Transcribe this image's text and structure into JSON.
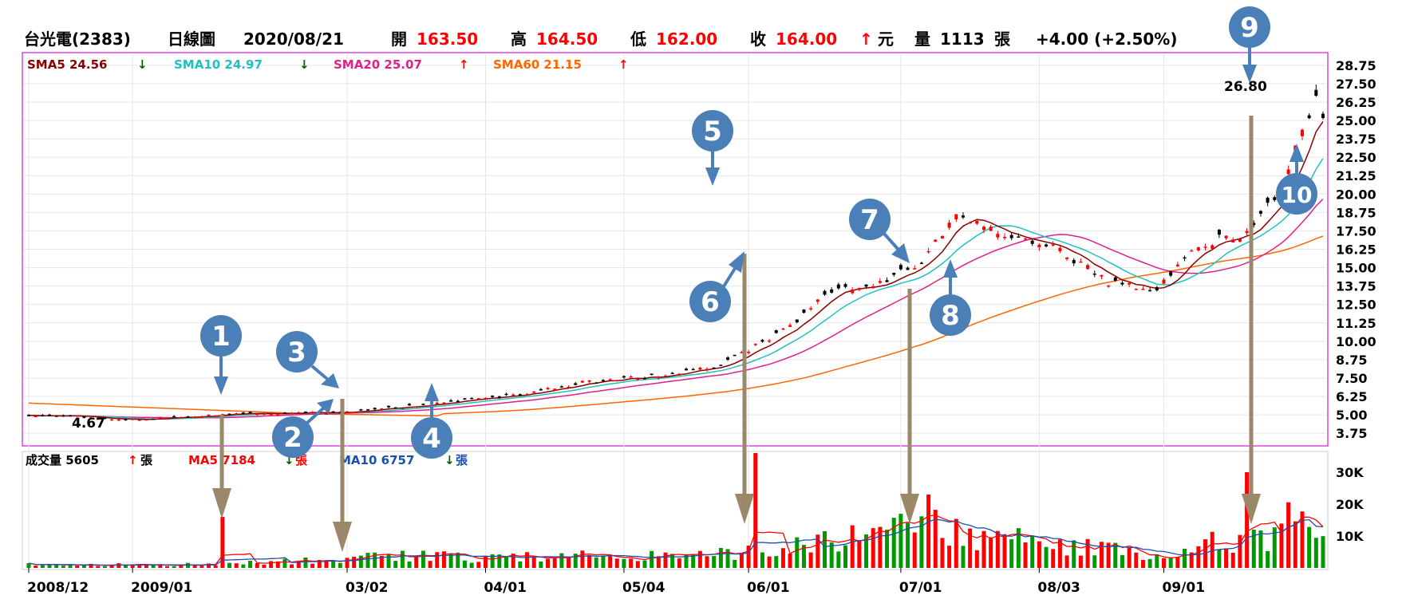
{
  "header": {
    "stock": "台光電(2383)",
    "chart_kind": "日線圖",
    "date": "2020/08/21",
    "open_label": "開",
    "open": "163.50",
    "high_label": "高",
    "high": "164.50",
    "low_label": "低",
    "low": "162.00",
    "close_label": "收",
    "close": "164.00",
    "unit": "元",
    "volume_label": "量",
    "volume": "1113",
    "volume_unit": "張",
    "change": "+4.00 (+2.50%)",
    "up_arrow": "↑"
  },
  "price_legend": [
    {
      "label": "SMA5 24.56",
      "arrow": "↓",
      "color": "#8b0000",
      "arrow_color": "#006400"
    },
    {
      "label": "SMA10 24.97",
      "arrow": "↓",
      "color": "#20c0c0",
      "arrow_color": "#006400"
    },
    {
      "label": "SMA20 25.07",
      "arrow": "↑",
      "color": "#e0208a",
      "arrow_color": "#ff0000"
    },
    {
      "label": "SMA60 21.15",
      "arrow": "↑",
      "color": "#ff6600",
      "arrow_color": "#ff0000"
    }
  ],
  "volume_legend": {
    "title": "成交量 5605",
    "title_arrow": "↑",
    "title_unit": "張",
    "ma5": "MA5 7184",
    "ma5_arrow": "↓",
    "ma5_unit": "張",
    "ma10": "MA10 6757",
    "ma10_arrow": "↓",
    "ma10_unit": "張"
  },
  "annotations": {
    "low_label": "4.67",
    "high_label": "26.80",
    "markers": [
      "1",
      "2",
      "3",
      "4",
      "5",
      "6",
      "7",
      "8",
      "9",
      "10"
    ]
  },
  "colors": {
    "up": "#ff0000",
    "down": "#000000",
    "vol_up": "#ff0000",
    "vol_down": "#009900",
    "marker": "#4a7fb8",
    "brown_arrow": "#9b8769",
    "panel_border": "#e040e0"
  },
  "chart_data": {
    "type": "candlestick",
    "x_tick_labels": [
      "2008/12",
      "2009/01",
      "03/02",
      "04/01",
      "05/04",
      "06/01",
      "07/01",
      "08/03",
      "09/01"
    ],
    "y_ticks": [
      "28.75",
      "27.50",
      "26.25",
      "25.00",
      "23.75",
      "22.50",
      "21.25",
      "20.00",
      "18.75",
      "17.50",
      "16.25",
      "15.00",
      "13.75",
      "12.50",
      "11.25",
      "10.00",
      "8.75",
      "7.50",
      "6.25",
      "5.00",
      "3.75"
    ],
    "ylim": [
      3.0,
      29.5
    ],
    "volume_ticks": [
      "30K",
      "20K",
      "10K"
    ],
    "volume_ylim": [
      0,
      36000
    ],
    "n_bars": 188,
    "price_anchors": [
      [
        0,
        5.0
      ],
      [
        8,
        4.9
      ],
      [
        14,
        4.7
      ],
      [
        20,
        4.8
      ],
      [
        28,
        5.0
      ],
      [
        36,
        5.1
      ],
      [
        46,
        5.2
      ],
      [
        56,
        5.6
      ],
      [
        64,
        6.1
      ],
      [
        70,
        6.3
      ],
      [
        80,
        7.2
      ],
      [
        90,
        7.6
      ],
      [
        100,
        8.4
      ],
      [
        110,
        11.0
      ],
      [
        115,
        13.3
      ],
      [
        122,
        13.8
      ],
      [
        129,
        15.3
      ],
      [
        134,
        18.6
      ],
      [
        140,
        17.3
      ],
      [
        150,
        16.2
      ],
      [
        158,
        14.2
      ],
      [
        164,
        13.7
      ],
      [
        170,
        14.9
      ],
      [
        176,
        16.2
      ],
      [
        188,
        17.2
      ]
    ],
    "volume_anchors": [
      [
        0,
        1200
      ],
      [
        20,
        900
      ],
      [
        30,
        1500
      ],
      [
        40,
        2200
      ],
      [
        56,
        4000
      ],
      [
        64,
        3000
      ],
      [
        80,
        4000
      ],
      [
        96,
        3500
      ],
      [
        110,
        6000
      ],
      [
        118,
        10000
      ],
      [
        130,
        13000
      ],
      [
        140,
        9000
      ],
      [
        150,
        7000
      ],
      [
        160,
        4500
      ],
      [
        164,
        2500
      ],
      [
        170,
        7000
      ],
      [
        188,
        9000
      ]
    ]
  }
}
